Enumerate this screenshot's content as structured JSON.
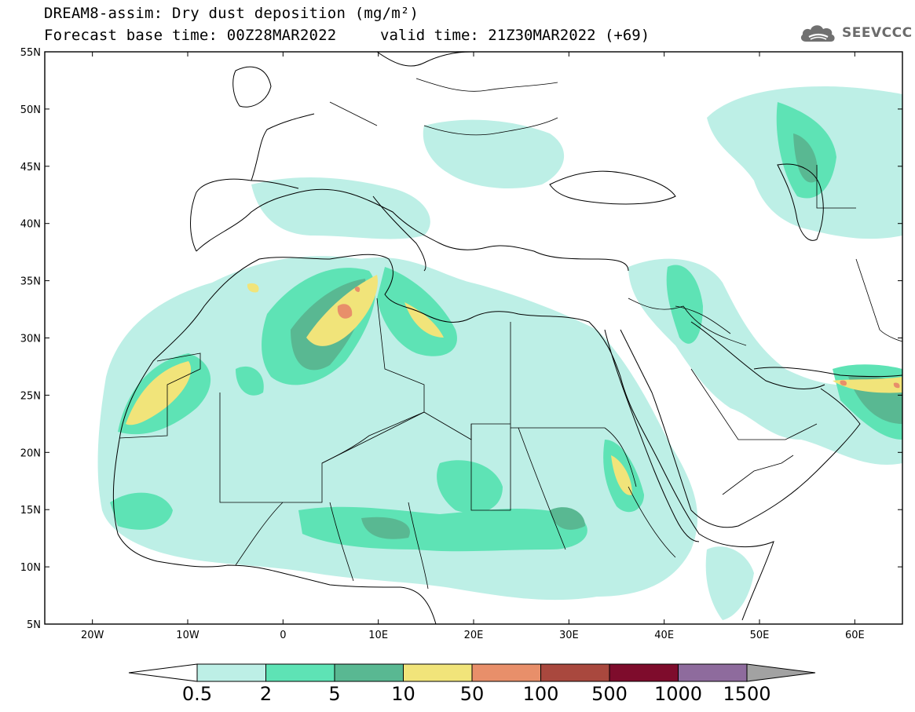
{
  "title": {
    "line1": "DREAM8-assim: Dry dust deposition (mg/m²)",
    "line2": "Forecast base time: 00Z28MAR2022",
    "valid": "valid time: 21Z30MAR2022 (+69)"
  },
  "logo": {
    "text": "SEEVCCC",
    "icon": "cloud-icon"
  },
  "map": {
    "lon_range": [
      -25,
      65
    ],
    "lat_range": [
      5,
      55
    ],
    "lat_ticks": [
      "55N",
      "50N",
      "45N",
      "40N",
      "35N",
      "30N",
      "25N",
      "20N",
      "15N",
      "10N",
      "5N"
    ],
    "lon_ticks": [
      "20W",
      "10W",
      "0",
      "10E",
      "20E",
      "30E",
      "40E",
      "50E",
      "60E"
    ],
    "lat_values": [
      55,
      50,
      45,
      40,
      35,
      30,
      25,
      20,
      15,
      10,
      5
    ],
    "lon_values": [
      -20,
      -10,
      0,
      10,
      20,
      30,
      40,
      50,
      60
    ]
  },
  "colorbar": {
    "labels": [
      "0.5",
      "2",
      "5",
      "10",
      "50",
      "100",
      "500",
      "1000",
      "1500"
    ],
    "colors": [
      "#bdefe6",
      "#5ee3b5",
      "#59b892",
      "#f1e47a",
      "#e88f6a",
      "#a9483e",
      "#7e0c2c",
      "#8e6b9d"
    ],
    "under_color": "#ffffff",
    "over_color": "#a2a2a2"
  },
  "levels_colors": {
    "l1": "#bdefe6",
    "l2": "#5ee3b5",
    "l3": "#59b892",
    "l4": "#f1e47a",
    "l5": "#e88f6a"
  }
}
